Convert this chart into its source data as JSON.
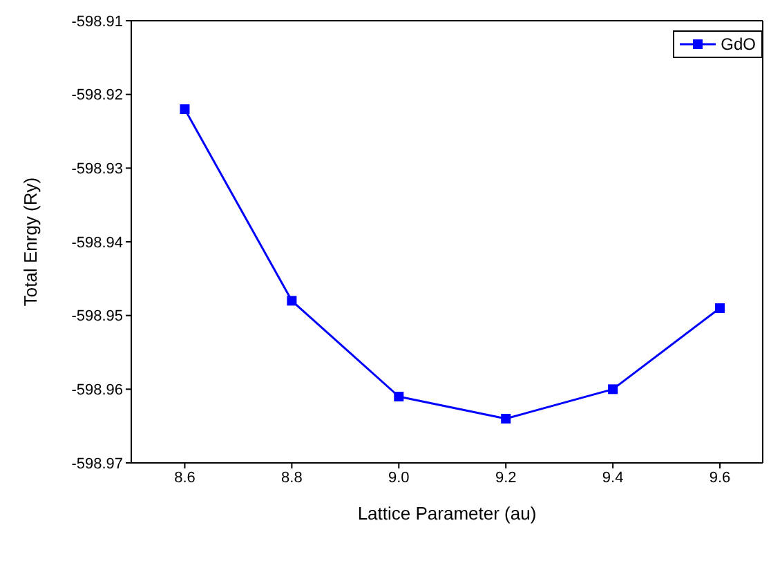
{
  "chart_data": {
    "type": "line",
    "xlabel": "Lattice Parameter (au)",
    "ylabel": "Total Enrgy (Ry)",
    "x": [
      8.6,
      8.8,
      9.0,
      9.2,
      9.4,
      9.6
    ],
    "series": [
      {
        "name": "GdO",
        "color": "#0000ff",
        "values": [
          -598.922,
          -598.948,
          -598.961,
          -598.964,
          -598.96,
          -598.949
        ]
      }
    ],
    "xlim": [
      8.5,
      9.68
    ],
    "xticks": [
      {
        "value": 8.6,
        "label": "8.6"
      },
      {
        "value": 8.8,
        "label": "8.8"
      },
      {
        "value": 9.0,
        "label": "9.0"
      },
      {
        "value": 9.2,
        "label": "9.2"
      },
      {
        "value": 9.4,
        "label": "9.4"
      },
      {
        "value": 9.6,
        "label": "9.6"
      }
    ],
    "ylim": [
      -598.97,
      -598.91
    ],
    "yticks": [
      -598.97,
      -598.96,
      -598.95,
      -598.94,
      -598.93,
      -598.92,
      -598.91
    ],
    "legend": "top right",
    "marker": "square",
    "line_style": "solid"
  }
}
